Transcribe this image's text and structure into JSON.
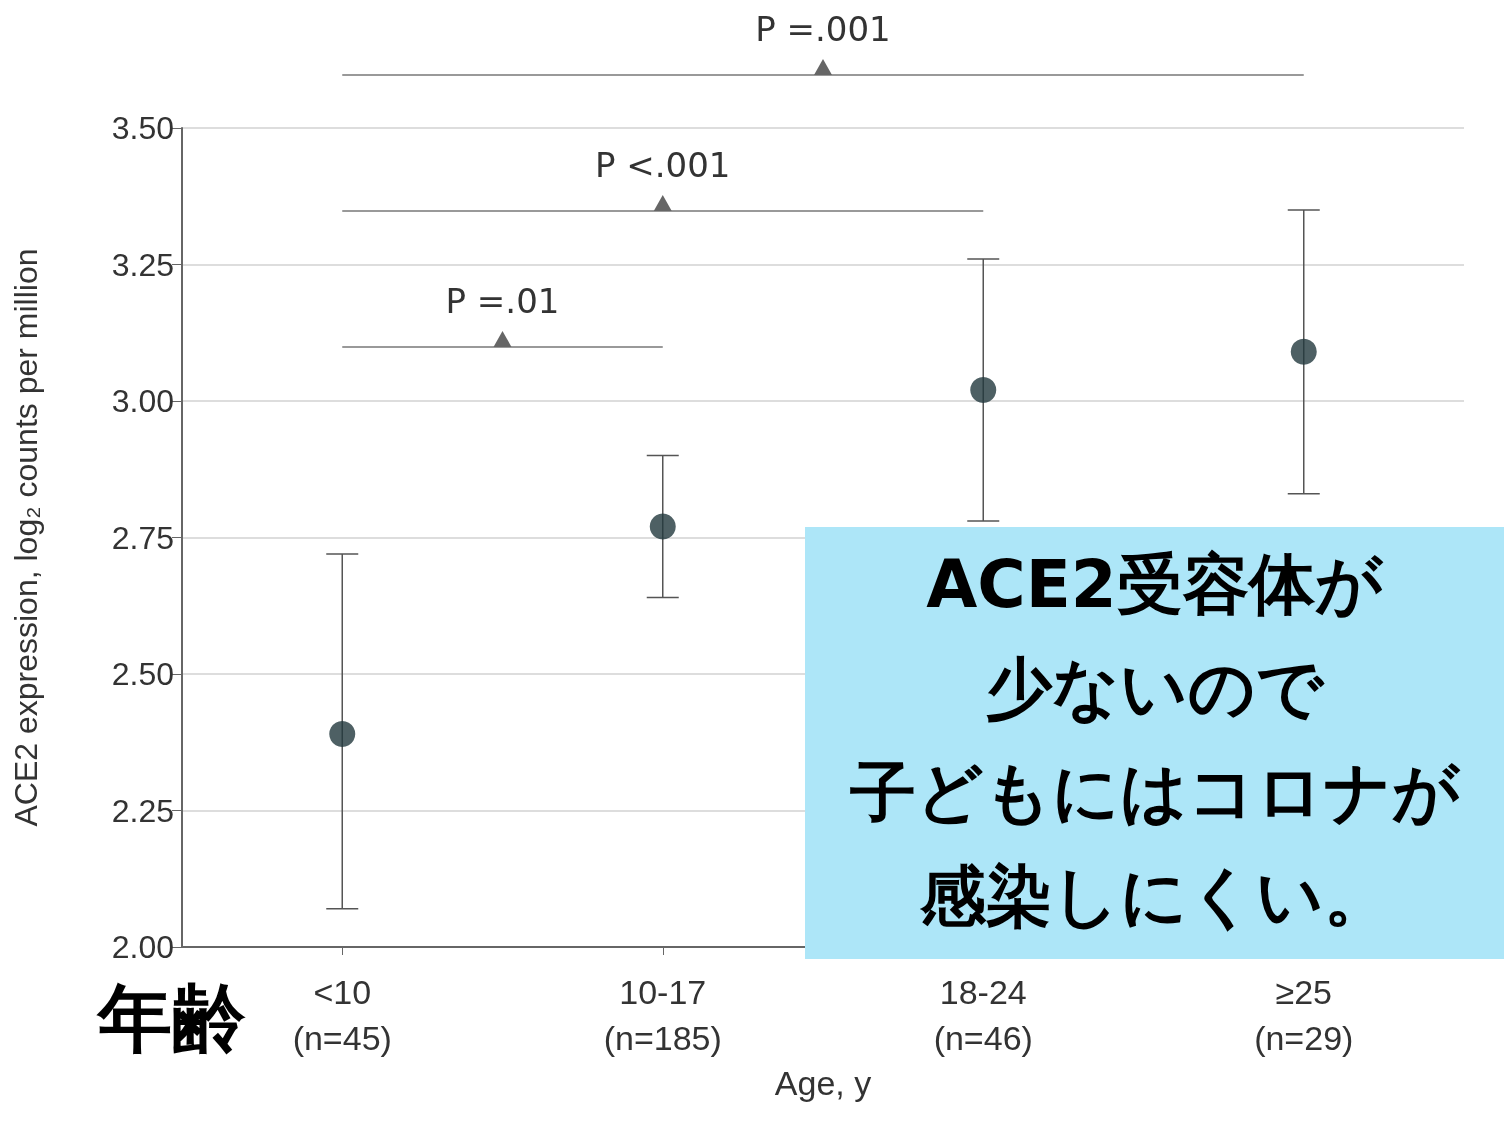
{
  "chart_data": {
    "type": "scatter",
    "xlabel": "Age, y",
    "ylabel": "ACE2 expression, log₂ counts per million",
    "categories": [
      "<10\n(n=45)",
      "10-17\n(n=185)",
      "18-24\n(n=46)",
      "≥25\n(n=29)"
    ],
    "series": [
      {
        "color": "#22383d",
        "values": [
          2.39,
          2.77,
          3.02,
          3.09
        ],
        "errors": [
          [
            2.07,
            2.72
          ],
          [
            2.64,
            2.9
          ],
          [
            2.78,
            3.26
          ],
          [
            2.83,
            3.35
          ]
        ]
      }
    ],
    "ylim": [
      2,
      3.5
    ],
    "yticks": [
      {
        "value": 2,
        "label": "2.00"
      },
      {
        "value": 2.25,
        "label": "2.25"
      },
      {
        "value": 2.5,
        "label": "2.50"
      },
      {
        "value": 2.75,
        "label": "2.75"
      },
      {
        "value": 3,
        "label": "3.00"
      },
      {
        "value": 3.25,
        "label": "3.25"
      },
      {
        "value": 3.5,
        "label": "3.50"
      }
    ],
    "grid": "y",
    "marker": "circle",
    "annotations": [
      "P =.01",
      "P <.001",
      "P =.001",
      "年齢",
      "ACE2受容体が",
      "少ないので",
      "子どもにはコロナが",
      "感染しにくい。"
    ]
  }
}
